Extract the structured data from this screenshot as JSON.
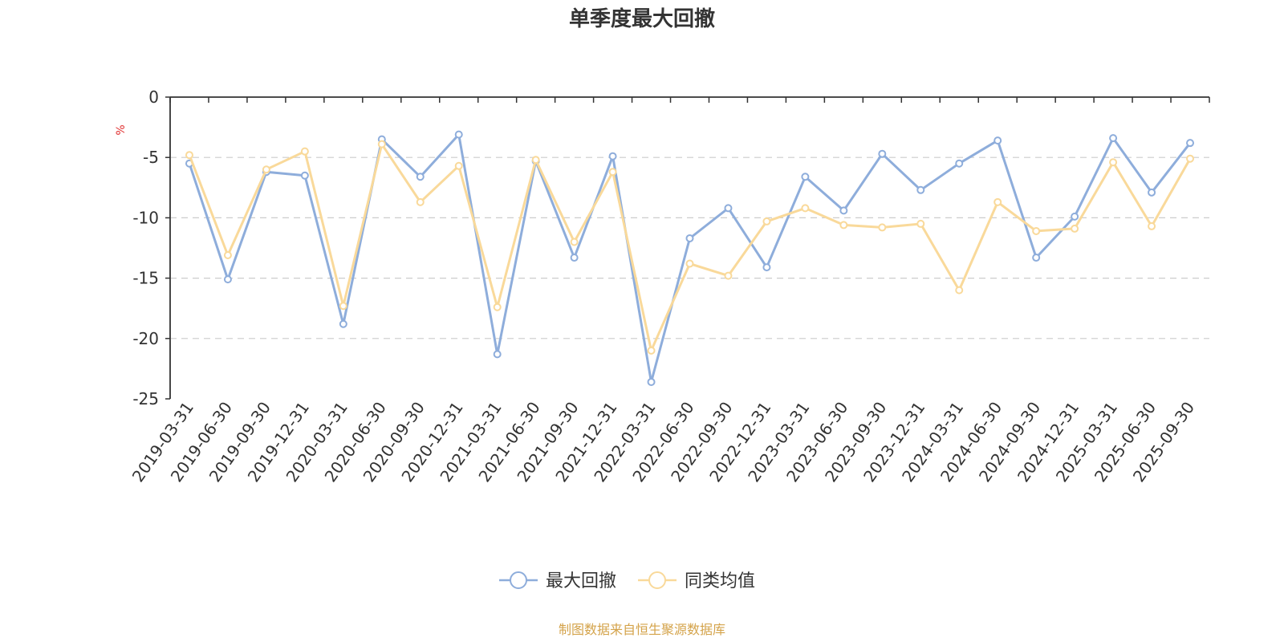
{
  "chart_data": {
    "type": "line",
    "title": "单季度最大回撤",
    "ylabel": "%",
    "ylim": [
      -25,
      0
    ],
    "yticks": [
      0,
      -5,
      -10,
      -15,
      -20,
      -25
    ],
    "grid": true,
    "legend_position": "bottom",
    "categories": [
      "2019-03-31",
      "2019-06-30",
      "2019-09-30",
      "2019-12-31",
      "2020-03-31",
      "2020-06-30",
      "2020-09-30",
      "2020-12-31",
      "2021-03-31",
      "2021-06-30",
      "2021-09-30",
      "2021-12-31",
      "2022-03-31",
      "2022-06-30",
      "2022-09-30",
      "2022-12-31",
      "2023-03-31",
      "2023-06-30",
      "2023-09-30",
      "2023-12-31",
      "2024-03-31",
      "2024-06-30",
      "2024-09-30",
      "2024-12-31",
      "2025-03-31",
      "2025-06-30",
      "2025-09-30"
    ],
    "series": [
      {
        "name": "最大回撤",
        "color": "#8eaddb",
        "values": [
          -5.5,
          -15.1,
          -6.2,
          -6.5,
          -18.8,
          -3.5,
          -6.6,
          -3.1,
          -21.3,
          -5.3,
          -13.3,
          -4.9,
          -23.6,
          -11.7,
          -9.2,
          -14.1,
          -6.6,
          -9.4,
          -4.7,
          -7.7,
          -5.5,
          -3.6,
          -13.3,
          -9.9,
          -3.4,
          -7.9,
          -3.8
        ]
      },
      {
        "name": "同类均值",
        "color": "#f9d99a",
        "values": [
          -4.8,
          -13.1,
          -6.0,
          -4.5,
          -17.3,
          -3.9,
          -8.7,
          -5.7,
          -17.4,
          -5.2,
          -12.0,
          -6.2,
          -21.0,
          -13.8,
          -14.8,
          -10.3,
          -9.2,
          -10.6,
          -10.8,
          -10.5,
          -16.0,
          -8.7,
          -11.1,
          -10.9,
          -5.4,
          -10.7,
          -5.1
        ]
      }
    ]
  },
  "footer": {
    "source": "制图数据来自恒生聚源数据库"
  },
  "colors": {
    "axis": "#333333",
    "grid": "#cccccc",
    "unit": "#e03030",
    "source": "#d4a34a"
  }
}
